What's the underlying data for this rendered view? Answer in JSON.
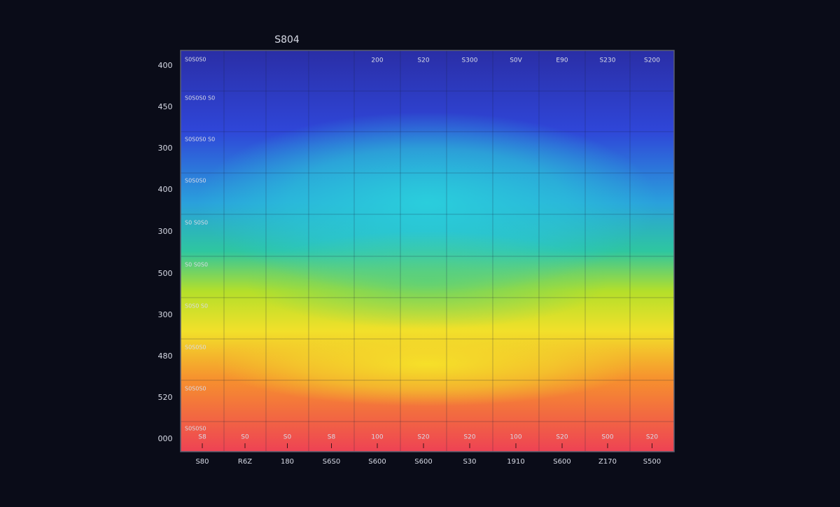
{
  "title": "S804",
  "y_labels": [
    "400",
    "450",
    "300",
    "400",
    "300",
    "500",
    "300",
    "480",
    "520",
    "000"
  ],
  "x_labels": [
    "S80",
    "R6Z",
    "180",
    "S6S0",
    "S600",
    "S600",
    "S30",
    "1910",
    "S600",
    "Z170",
    "S500"
  ],
  "top_row_labels": [
    "200",
    "S20",
    "S300",
    "S0V",
    "E90",
    "S230",
    "S200"
  ],
  "row_labels": [
    "S0S0S0",
    "S0S0S0 S0",
    "S0S0S0 S0",
    "S0S0S0",
    "S0 S0S0",
    "S0 S0S0",
    "S0S0 S0",
    "S0S0S0",
    "S0S0S0",
    "S0S0S0"
  ],
  "bottom_row_labels": [
    "S8",
    "S0",
    "S0",
    "S8",
    "100",
    "S20",
    "S20",
    "100",
    "S20",
    "S00",
    "S20"
  ]
}
